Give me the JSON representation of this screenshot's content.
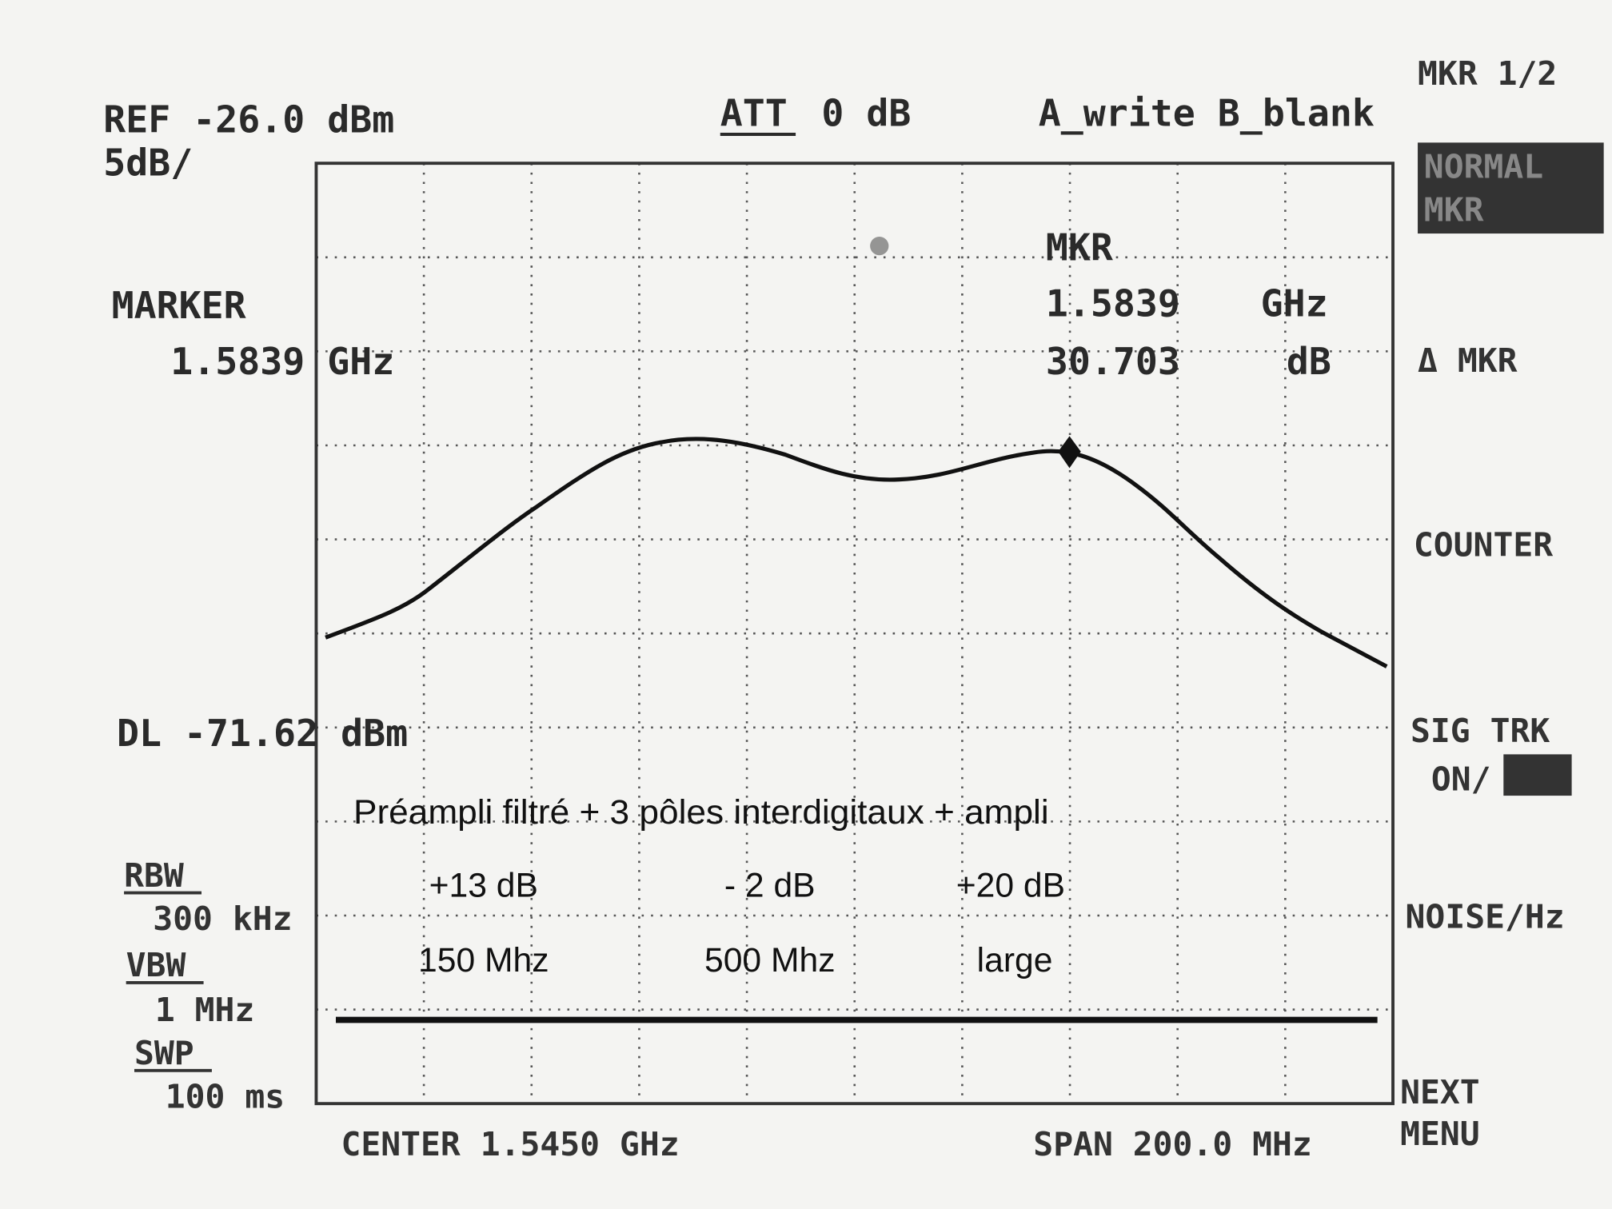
{
  "header": {
    "ref": "REF -26.0 dBm",
    "scale": "5dB/",
    "attenuation_label": "ATT",
    "attenuation_value": "0 dB",
    "trace_mode": "A_write B_blank"
  },
  "marker_panel": {
    "label": "MARKER",
    "frequency": "1.5839 GHz"
  },
  "marker_readout": {
    "label": "MKR",
    "frequency": "1.5839",
    "frequency_unit": "GHz",
    "level": "30.703",
    "level_unit": "dB"
  },
  "display_line": "DL -71.62 dBm",
  "settings": [
    {
      "label": "RBW",
      "value": "300 kHz"
    },
    {
      "label": "VBW",
      "value": "1 MHz"
    },
    {
      "label": "SWP",
      "value": "100 ms"
    }
  ],
  "footer": {
    "center": "CENTER 1.5450 GHz",
    "span": "SPAN 200.0 MHz"
  },
  "softkeys": [
    {
      "lines": [
        "MKR 1/2"
      ]
    },
    {
      "lines": [
        "NORMAL",
        "MKR"
      ]
    },
    {
      "lines": [
        "Δ MKR"
      ]
    },
    {
      "lines": [
        "COUNTER"
      ]
    },
    {
      "lines": [
        "SIG TRK",
        "ON/"
      ]
    },
    {
      "lines": [
        "NOISE/Hz"
      ]
    },
    {
      "lines": [
        "NEXT",
        "MENU"
      ]
    }
  ],
  "annotation": {
    "title": "Préampli filtré + 3 pôles interdigitaux + ampli",
    "stages": [
      {
        "gain": "+13 dB",
        "bandwidth": "150 Mhz"
      },
      {
        "gain": "- 2 dB",
        "bandwidth": "500 Mhz"
      },
      {
        "gain": "+20 dB",
        "bandwidth": "large"
      }
    ]
  }
}
